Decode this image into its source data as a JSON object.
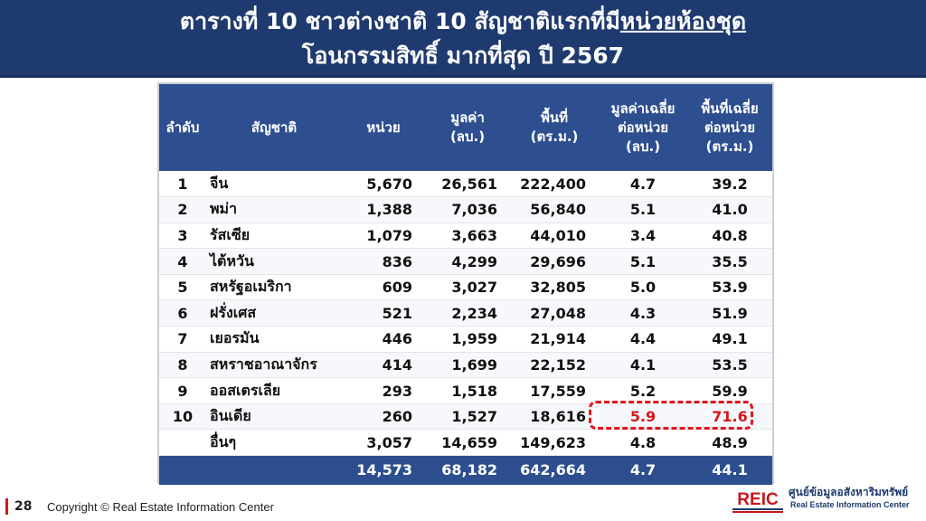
{
  "header": {
    "title_prefix": "ตารางที่ 10 ชาวต่างชาติ 10 สัญชาติแรกที่มี",
    "title_highlight": "หน่วยห้องชุด",
    "title_line2": "โอนกรรมสิทธิ์ มากที่สุด ปี 2567"
  },
  "table": {
    "columns": {
      "rank": "ลำดับ",
      "nation": "สัญชาติ",
      "units": "หน่วย",
      "value_l1": "มูลค่า",
      "value_l2": "(ลบ.)",
      "area_l1": "พื้นที่",
      "area_l2": "(ตร.ม.)",
      "avgval_l1": "มูลค่าเฉลี่ย",
      "avgval_l2": "ต่อหน่วย",
      "avgval_l3": "(ลบ.)",
      "avgarea_l1": "พื้นที่เฉลี่ย",
      "avgarea_l2": "ต่อหน่วย",
      "avgarea_l3": "(ตร.ม.)"
    },
    "rows": [
      {
        "rank": "1",
        "nation": "จีน",
        "units": "5,670",
        "value": "26,561",
        "area": "222,400",
        "avg_value": "4.7",
        "avg_area": "39.2"
      },
      {
        "rank": "2",
        "nation": "พม่า",
        "units": "1,388",
        "value": "7,036",
        "area": "56,840",
        "avg_value": "5.1",
        "avg_area": "41.0"
      },
      {
        "rank": "3",
        "nation": "รัสเซีย",
        "units": "1,079",
        "value": "3,663",
        "area": "44,010",
        "avg_value": "3.4",
        "avg_area": "40.8"
      },
      {
        "rank": "4",
        "nation": "ไต้หวัน",
        "units": "836",
        "value": "4,299",
        "area": "29,696",
        "avg_value": "5.1",
        "avg_area": "35.5"
      },
      {
        "rank": "5",
        "nation": "สหรัฐอเมริกา",
        "units": "609",
        "value": "3,027",
        "area": "32,805",
        "avg_value": "5.0",
        "avg_area": "53.9"
      },
      {
        "rank": "6",
        "nation": "ฝรั่งเศส",
        "units": "521",
        "value": "2,234",
        "area": "27,048",
        "avg_value": "4.3",
        "avg_area": "51.9"
      },
      {
        "rank": "7",
        "nation": "เยอรมัน",
        "units": "446",
        "value": "1,959",
        "area": "21,914",
        "avg_value": "4.4",
        "avg_area": "49.1"
      },
      {
        "rank": "8",
        "nation": "สหราชอาณาจักร",
        "units": "414",
        "value": "1,699",
        "area": "22,152",
        "avg_value": "4.1",
        "avg_area": "53.5"
      },
      {
        "rank": "9",
        "nation": "ออสเตรเลีย",
        "units": "293",
        "value": "1,518",
        "area": "17,559",
        "avg_value": "5.2",
        "avg_area": "59.9"
      },
      {
        "rank": "10",
        "nation": "อินเดีย",
        "units": "260",
        "value": "1,527",
        "area": "18,616",
        "avg_value": "5.9",
        "avg_area": "71.6"
      },
      {
        "rank": "",
        "nation": "อื่นๆ",
        "units": "3,057",
        "value": "14,659",
        "area": "149,623",
        "avg_value": "4.8",
        "avg_area": "48.9"
      }
    ],
    "total": {
      "units": "14,573",
      "value": "68,182",
      "area": "642,664",
      "avg_value": "4.7",
      "avg_area": "44.1"
    }
  },
  "footer": {
    "page": "28",
    "copyright": "Copyright © Real Estate Information Center"
  },
  "logo": {
    "mark": "REIC",
    "thai_name": "ศูนย์ข้อมูลอสังหาริมทรัพย์",
    "english_name": "Real Estate Information Center"
  },
  "colors": {
    "header_bg": "#1f3a6e",
    "table_header_bg": "#2e4f8f",
    "highlight_red": "#d9151c"
  }
}
